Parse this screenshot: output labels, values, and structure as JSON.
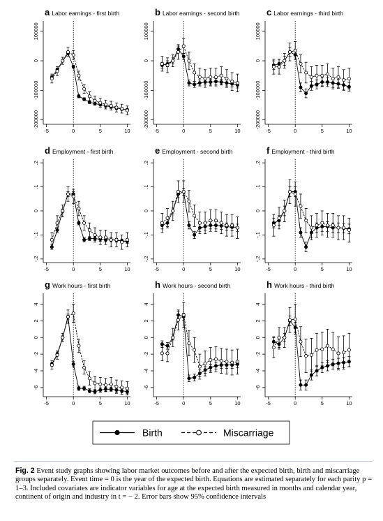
{
  "figure": {
    "caption_label": "Fig. 2",
    "caption_text": "Event study graphs showing labor market outcomes before and after the expected birth, birth and miscarriage groups separately. Event time = 0 is the year of the expected birth. Equations are estimated separately for each parity p = 1–3. Included covariates are indicator variables for age at the expected birth measured in months and calendar year, continent of origin and industry in t = − 2. Error bars show 95% confidence intervals",
    "legend": {
      "birth_label": "Birth",
      "miscarriage_label": "Miscarriage"
    }
  },
  "chart_data": [
    {
      "type": "line",
      "letter": "a",
      "title": "Labor earnings - first birth",
      "x": [
        -4,
        -3,
        -2,
        -1,
        0,
        1,
        2,
        3,
        4,
        5,
        6,
        7,
        8,
        9,
        10
      ],
      "xticks": [
        -5,
        0,
        5,
        10
      ],
      "xticklabels": [
        "-5",
        "0",
        "5",
        "10"
      ],
      "ylim": [
        -215000,
        135000
      ],
      "yticks": [
        -200000,
        -100000,
        0,
        100000
      ],
      "yticklabels": [
        "-200000",
        "-100000",
        "0",
        "100000"
      ],
      "series": [
        {
          "name": "Birth",
          "marker": "filled",
          "values": [
            -55000,
            -30000,
            0,
            25000,
            -20000,
            -120000,
            -130000,
            -140000,
            -145000,
            -148000,
            -152000,
            -156000,
            -160000,
            -163000,
            -166000
          ],
          "err": [
            5000,
            5000,
            4000,
            4000,
            5000,
            5000,
            5000,
            5000,
            5000,
            5000,
            5000,
            5000,
            5000,
            5000,
            5000
          ]
        },
        {
          "name": "Miscarriage",
          "marker": "hollow",
          "values": [
            -60000,
            -35000,
            0,
            30000,
            20000,
            -50000,
            -95000,
            -120000,
            -135000,
            -142000,
            -148000,
            -152000,
            -158000,
            -162000,
            -168000
          ],
          "err": [
            15000,
            15000,
            12000,
            15000,
            15000,
            15000,
            15000,
            15000,
            15000,
            15000,
            15000,
            15000,
            15000,
            15000,
            15000
          ]
        }
      ]
    },
    {
      "type": "line",
      "letter": "b",
      "title": "Labor earnings - second birth",
      "x": [
        -4,
        -3,
        -2,
        -1,
        0,
        1,
        2,
        3,
        4,
        5,
        6,
        7,
        8,
        9,
        10
      ],
      "xticks": [
        -5,
        0,
        5,
        10
      ],
      "xticklabels": [
        "-5",
        "0",
        "5",
        "10"
      ],
      "ylim": [
        -215000,
        135000
      ],
      "yticks": [
        -200000,
        -100000,
        0,
        100000
      ],
      "yticklabels": [
        "-200000",
        "-100000",
        "0",
        "100000"
      ],
      "series": [
        {
          "name": "Birth",
          "marker": "filled",
          "values": [
            -15000,
            -10000,
            0,
            40000,
            15000,
            -75000,
            -80000,
            -75000,
            -72000,
            -72000,
            -70000,
            -72000,
            -75000,
            -78000,
            -82000
          ],
          "err": [
            10000,
            10000,
            10000,
            10000,
            10000,
            10000,
            10000,
            10000,
            10000,
            10000,
            10000,
            10000,
            10000,
            10000,
            10000
          ]
        },
        {
          "name": "Miscarriage",
          "marker": "hollow",
          "values": [
            -10000,
            -15000,
            0,
            30000,
            50000,
            0,
            -40000,
            -55000,
            -60000,
            -55000,
            -55000,
            -50000,
            -60000,
            -70000,
            -75000
          ],
          "err": [
            25000,
            25000,
            20000,
            25000,
            25000,
            30000,
            30000,
            30000,
            30000,
            30000,
            30000,
            30000,
            30000,
            30000,
            30000
          ]
        }
      ]
    },
    {
      "type": "line",
      "letter": "c",
      "title": "Labor earnings - third birth",
      "x": [
        -4,
        -3,
        -2,
        -1,
        0,
        1,
        2,
        3,
        4,
        5,
        6,
        7,
        8,
        9,
        10
      ],
      "xticks": [
        -5,
        0,
        5,
        10
      ],
      "xticklabels": [
        "-5",
        "0",
        "5",
        "10"
      ],
      "ylim": [
        -215000,
        135000
      ],
      "yticks": [
        -200000,
        -100000,
        0,
        100000
      ],
      "yticklabels": [
        "-200000",
        "-100000",
        "0",
        "100000"
      ],
      "series": [
        {
          "name": "Birth",
          "marker": "filled",
          "values": [
            -15000,
            -10000,
            0,
            30000,
            20000,
            -90000,
            -110000,
            -85000,
            -80000,
            -72000,
            -72000,
            -75000,
            -78000,
            -82000,
            -88000
          ],
          "err": [
            15000,
            15000,
            15000,
            15000,
            15000,
            15000,
            15000,
            15000,
            15000,
            15000,
            15000,
            15000,
            15000,
            15000,
            15000
          ]
        },
        {
          "name": "Miscarriage",
          "marker": "hollow",
          "values": [
            -20000,
            -20000,
            0,
            30000,
            35000,
            -10000,
            -40000,
            -55000,
            -50000,
            -50000,
            -45000,
            -60000,
            -55000,
            -65000,
            -60000
          ],
          "err": [
            25000,
            25000,
            25000,
            30000,
            30000,
            30000,
            35000,
            35000,
            35000,
            35000,
            35000,
            35000,
            35000,
            35000,
            35000
          ]
        }
      ]
    },
    {
      "type": "line",
      "letter": "d",
      "title": "Employment - first birth",
      "x": [
        -4,
        -3,
        -2,
        -1,
        0,
        1,
        2,
        3,
        4,
        5,
        6,
        7,
        8,
        9,
        10
      ],
      "xticks": [
        -5,
        0,
        5,
        10
      ],
      "xticklabels": [
        "-5",
        "0",
        "5",
        "10"
      ],
      "ylim": [
        -0.215,
        0.215
      ],
      "yticks": [
        -0.2,
        -0.1,
        0,
        0.1,
        0.2
      ],
      "yticklabels": [
        "-.2",
        "-.1",
        "0",
        ".1",
        ".2"
      ],
      "series": [
        {
          "name": "Birth",
          "marker": "filled",
          "values": [
            -0.15,
            -0.08,
            0,
            0.07,
            0.07,
            -0.05,
            -0.12,
            -0.115,
            -0.115,
            -0.118,
            -0.12,
            -0.12,
            -0.122,
            -0.125,
            -0.127
          ],
          "err": [
            0.01,
            0.01,
            0.008,
            0.01,
            0.01,
            0.008,
            0.008,
            0.008,
            0.008,
            0.008,
            0.008,
            0.008,
            0.008,
            0.008,
            0.008
          ]
        },
        {
          "name": "Miscarriage",
          "marker": "hollow",
          "values": [
            -0.12,
            -0.05,
            0,
            0.07,
            0.06,
            0.01,
            -0.05,
            -0.08,
            -0.1,
            -0.11,
            -0.11,
            -0.12,
            -0.12,
            -0.13,
            -0.12
          ],
          "err": [
            0.03,
            0.03,
            0.025,
            0.03,
            0.03,
            0.03,
            0.03,
            0.03,
            0.03,
            0.03,
            0.03,
            0.03,
            0.03,
            0.03,
            0.03
          ]
        }
      ]
    },
    {
      "type": "line",
      "letter": "e",
      "title": "Employment - second birth",
      "x": [
        -4,
        -3,
        -2,
        -1,
        0,
        1,
        2,
        3,
        4,
        5,
        6,
        7,
        8,
        9,
        10
      ],
      "xticks": [
        -5,
        0,
        5,
        10
      ],
      "xticklabels": [
        "-5",
        "0",
        "5",
        "10"
      ],
      "ylim": [
        -0.215,
        0.215
      ],
      "yticks": [
        -0.2,
        -0.1,
        0,
        0.1,
        0.2
      ],
      "yticklabels": [
        "-.2",
        "-.1",
        "0",
        ".1",
        ".2"
      ],
      "series": [
        {
          "name": "Birth",
          "marker": "filled",
          "values": [
            -0.06,
            -0.05,
            0,
            0.07,
            0.08,
            -0.06,
            -0.1,
            -0.07,
            -0.065,
            -0.06,
            -0.06,
            -0.062,
            -0.065,
            -0.068,
            -0.07
          ],
          "err": [
            0.015,
            0.015,
            0.012,
            0.015,
            0.015,
            0.015,
            0.015,
            0.015,
            0.015,
            0.015,
            0.015,
            0.015,
            0.015,
            0.015,
            0.015
          ]
        },
        {
          "name": "Miscarriage",
          "marker": "hollow",
          "values": [
            -0.05,
            -0.03,
            0,
            0.08,
            0.08,
            0.04,
            -0.02,
            -0.05,
            -0.05,
            -0.04,
            -0.04,
            -0.05,
            -0.06,
            -0.06,
            -0.07
          ],
          "err": [
            0.04,
            0.04,
            0.04,
            0.045,
            0.045,
            0.045,
            0.045,
            0.045,
            0.045,
            0.045,
            0.045,
            0.045,
            0.045,
            0.045,
            0.045
          ]
        }
      ]
    },
    {
      "type": "line",
      "letter": "f",
      "title": "Employment - third birth",
      "x": [
        -4,
        -3,
        -2,
        -1,
        0,
        1,
        2,
        3,
        4,
        5,
        6,
        7,
        8,
        9,
        10
      ],
      "xticks": [
        -5,
        0,
        5,
        10
      ],
      "xticklabels": [
        "-5",
        "0",
        "5",
        "10"
      ],
      "ylim": [
        -0.215,
        0.215
      ],
      "yticks": [
        -0.2,
        -0.1,
        0,
        0.1,
        0.2
      ],
      "yticklabels": [
        "-.2",
        "-.1",
        "0",
        ".1",
        ".2"
      ],
      "series": [
        {
          "name": "Birth",
          "marker": "filled",
          "values": [
            -0.05,
            -0.04,
            0,
            0.08,
            0.08,
            -0.09,
            -0.15,
            -0.09,
            -0.07,
            -0.065,
            -0.065,
            -0.07,
            -0.07,
            -0.072,
            -0.075
          ],
          "err": [
            0.02,
            0.02,
            0.02,
            0.02,
            0.02,
            0.02,
            0.02,
            0.02,
            0.02,
            0.02,
            0.02,
            0.02,
            0.02,
            0.02,
            0.02
          ]
        },
        {
          "name": "Miscarriage",
          "marker": "hollow",
          "values": [
            -0.06,
            -0.03,
            0,
            0.08,
            0.07,
            0.02,
            -0.04,
            -0.07,
            -0.06,
            -0.05,
            -0.06,
            -0.06,
            -0.07,
            -0.07,
            -0.08
          ],
          "err": [
            0.045,
            0.045,
            0.045,
            0.05,
            0.05,
            0.05,
            0.05,
            0.05,
            0.05,
            0.05,
            0.05,
            0.05,
            0.05,
            0.05,
            0.05
          ]
        }
      ]
    },
    {
      "type": "line",
      "letter": "g",
      "title": "Work hours - first birth",
      "x": [
        -4,
        -3,
        -2,
        -1,
        0,
        1,
        2,
        3,
        4,
        5,
        6,
        7,
        8,
        9,
        10
      ],
      "xticks": [
        -5,
        0,
        5,
        10
      ],
      "xticklabels": [
        "-5",
        "0",
        "5",
        "10"
      ],
      "ylim": [
        -7.1,
        5.3
      ],
      "yticks": [
        -6,
        -4,
        -2,
        0,
        2,
        4
      ],
      "yticklabels": [
        "-6",
        "-4",
        "-2",
        "0",
        "2",
        "4"
      ],
      "series": [
        {
          "name": "Birth",
          "marker": "filled",
          "values": [
            -3.2,
            -2,
            0,
            2.5,
            -3.2,
            -6.1,
            -6.1,
            -6.4,
            -6.5,
            -6.3,
            -6.2,
            -6.2,
            -6.3,
            -6.4,
            -6.5
          ],
          "err": [
            0.25,
            0.25,
            0.2,
            0.3,
            0.3,
            0.25,
            0.25,
            0.25,
            0.25,
            0.25,
            0.25,
            0.25,
            0.25,
            0.25,
            0.25
          ]
        },
        {
          "name": "Miscarriage",
          "marker": "hollow",
          "values": [
            -3.3,
            -2.1,
            0,
            2.5,
            2.9,
            -1,
            -3.6,
            -4.9,
            -5.5,
            -5.6,
            -5.7,
            -5.6,
            -5.9,
            -6,
            -6.1
          ],
          "err": [
            0.5,
            0.5,
            0.5,
            0.8,
            1.1,
            0.8,
            0.8,
            0.8,
            0.8,
            0.8,
            0.8,
            0.8,
            0.8,
            0.8,
            0.8
          ]
        }
      ]
    },
    {
      "type": "line",
      "letter": "h",
      "title": "Work hours - second birth",
      "x": [
        -4,
        -3,
        -2,
        -1,
        0,
        1,
        2,
        3,
        4,
        5,
        6,
        7,
        8,
        9,
        10
      ],
      "xticks": [
        -5,
        0,
        5,
        10
      ],
      "xticklabels": [
        "-5",
        "0",
        "5",
        "10"
      ],
      "ylim": [
        -7.1,
        5.3
      ],
      "yticks": [
        -6,
        -4,
        -2,
        0,
        2,
        4
      ],
      "yticklabels": [
        "-6",
        "-4",
        "-2",
        "0",
        "2",
        "4"
      ],
      "series": [
        {
          "name": "Birth",
          "marker": "filled",
          "values": [
            -0.8,
            -1,
            0,
            2.7,
            2.5,
            -4.9,
            -4.8,
            -4.3,
            -3.9,
            -3.6,
            -3.4,
            -3.3,
            -3.3,
            -3.3,
            -3.2
          ],
          "err": [
            0.4,
            0.4,
            0.3,
            0.4,
            0.4,
            0.4,
            0.4,
            0.4,
            0.4,
            0.4,
            0.4,
            0.4,
            0.4,
            0.4,
            0.4
          ]
        },
        {
          "name": "Miscarriage",
          "marker": "hollow",
          "values": [
            -1.9,
            -1.9,
            0,
            2.1,
            2.7,
            -0.7,
            -1.5,
            -3.5,
            -3.1,
            -2.7,
            -2.6,
            -2.8,
            -2.9,
            -3,
            -2.9
          ],
          "err": [
            0.9,
            1,
            1.1,
            1.2,
            1.5,
            1.5,
            1.5,
            1.5,
            1.5,
            1.5,
            1.5,
            1.5,
            1.5,
            1.5,
            1.5
          ]
        }
      ]
    },
    {
      "type": "line",
      "letter": "h",
      "title": "Work hours - third birth",
      "x": [
        -4,
        -3,
        -2,
        -1,
        0,
        1,
        2,
        3,
        4,
        5,
        6,
        7,
        8,
        9,
        10
      ],
      "xticks": [
        -5,
        0,
        5,
        10
      ],
      "xticklabels": [
        "-5",
        "0",
        "5",
        "10"
      ],
      "ylim": [
        -7.1,
        5.3
      ],
      "yticks": [
        -6,
        -4,
        -2,
        0,
        2,
        4
      ],
      "yticklabels": [
        "-6",
        "-4",
        "-2",
        "0",
        "2",
        "4"
      ],
      "series": [
        {
          "name": "Birth",
          "marker": "filled",
          "values": [
            -0.5,
            -0.8,
            0,
            2,
            1.2,
            -5.7,
            -5.7,
            -4.5,
            -4,
            -3.6,
            -3.4,
            -3.2,
            -3.1,
            -3,
            -2.9
          ],
          "err": [
            0.6,
            0.6,
            0.5,
            0.6,
            0.6,
            0.6,
            0.6,
            0.6,
            0.6,
            0.6,
            0.6,
            0.6,
            0.6,
            0.6,
            0.6
          ]
        },
        {
          "name": "Miscarriage",
          "marker": "hollow",
          "values": [
            -1.2,
            0,
            0,
            2.1,
            2.2,
            -0.5,
            -2.2,
            -2.1,
            -1.5,
            -1.4,
            -1,
            -1.4,
            -1.9,
            -1.8,
            -1.5
          ],
          "err": [
            1.2,
            1.2,
            1.2,
            1.5,
            1.8,
            1.8,
            2,
            2,
            2,
            2,
            2,
            2,
            2,
            2,
            2
          ]
        }
      ]
    }
  ]
}
